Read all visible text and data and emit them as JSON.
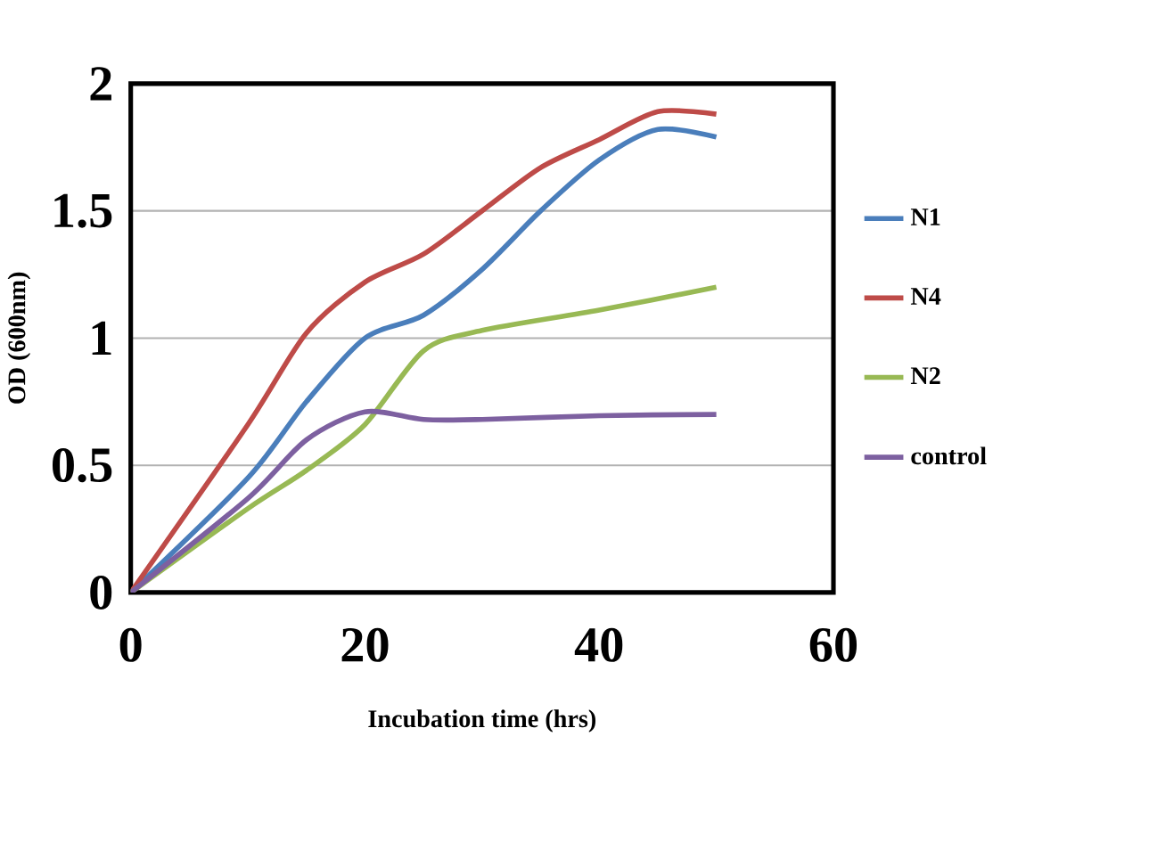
{
  "chart_data": {
    "type": "line",
    "xlabel": "Incubation time (hrs)",
    "ylabel": "OD (600nm)",
    "xlim": [
      0,
      60
    ],
    "xticks": [
      0,
      20,
      40,
      60
    ],
    "ylim": [
      0,
      2
    ],
    "yticks": [
      0,
      0.5,
      1,
      1.5,
      2
    ],
    "grid": "y",
    "legend": "right",
    "marker": "none",
    "line_style": "solid",
    "series": [
      {
        "name": "N1",
        "color": "#4a7ebb",
        "x": [
          0,
          10,
          15,
          20,
          25,
          30,
          35,
          40,
          45,
          50
        ],
        "values": [
          0,
          0.45,
          0.75,
          1.0,
          1.09,
          1.27,
          1.5,
          1.7,
          1.82,
          1.79
        ]
      },
      {
        "name": "N4",
        "color": "#be4b48",
        "x": [
          0,
          10,
          15,
          20,
          25,
          30,
          35,
          40,
          45,
          50
        ],
        "values": [
          0,
          0.66,
          1.02,
          1.22,
          1.33,
          1.5,
          1.67,
          1.78,
          1.89,
          1.88
        ]
      },
      {
        "name": "N2",
        "color": "#98b954",
        "x": [
          0,
          10,
          15,
          20,
          25,
          30,
          40,
          50
        ],
        "values": [
          0,
          0.33,
          0.48,
          0.66,
          0.95,
          1.03,
          1.11,
          1.2
        ]
      },
      {
        "name": "control",
        "color": "#7d60a0",
        "x": [
          0,
          10,
          15,
          20,
          25,
          30,
          40,
          50
        ],
        "values": [
          0,
          0.37,
          0.6,
          0.71,
          0.68,
          0.68,
          0.695,
          0.7
        ]
      }
    ]
  }
}
